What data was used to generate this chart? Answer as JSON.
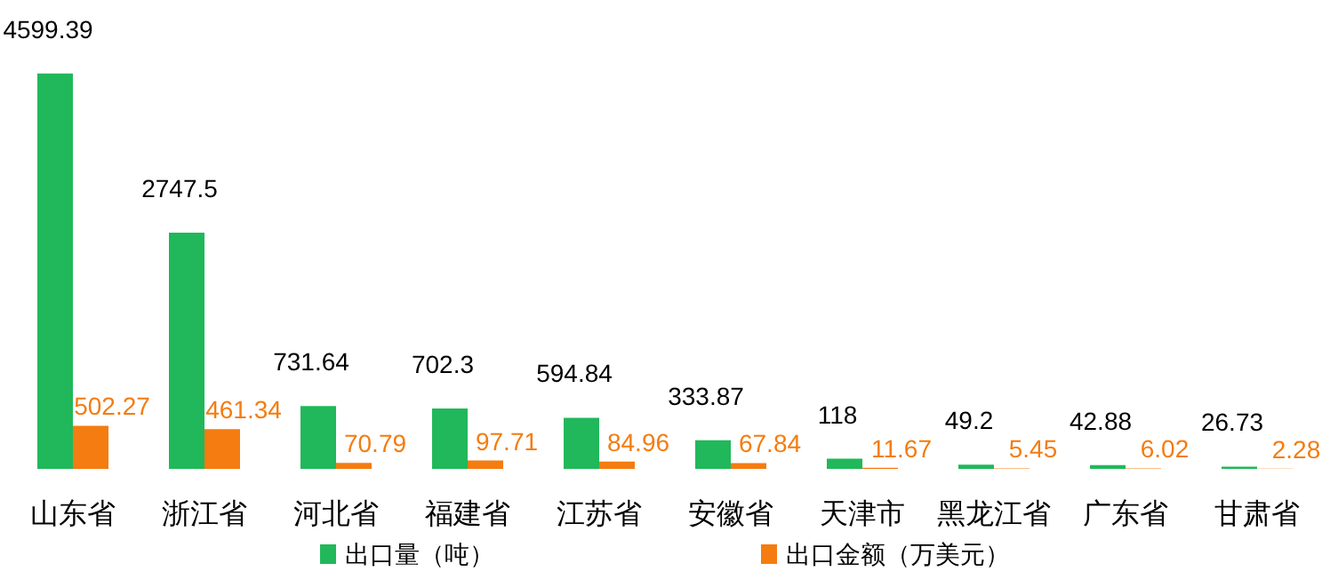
{
  "chart_data": {
    "type": "bar",
    "categories": [
      "山东省",
      "浙江省",
      "河北省",
      "福建省",
      "江苏省",
      "安徽省",
      "天津市",
      "黑龙江省",
      "广东省",
      "甘肃省"
    ],
    "series": [
      {
        "name": "出口量（吨）",
        "color": "#20b85a",
        "values": [
          4599.39,
          2747.5,
          731.64,
          702.3,
          594.84,
          333.87,
          118,
          49.2,
          42.88,
          26.73
        ]
      },
      {
        "name": "出口金额（万美元）",
        "color": "#f47c10",
        "values": [
          502.27,
          461.34,
          70.79,
          97.71,
          84.96,
          67.84,
          11.67,
          5.45,
          6.02,
          2.28
        ]
      }
    ],
    "data_labels": true,
    "legend": "bottom"
  }
}
